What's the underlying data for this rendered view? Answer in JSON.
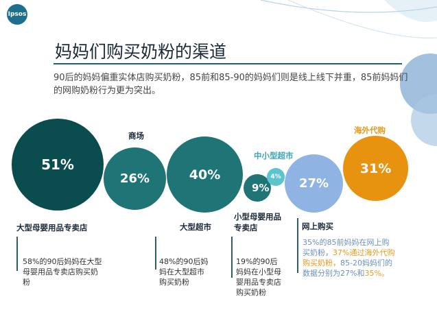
{
  "logo": "Ipsos",
  "title": "妈妈们购买奶粉的渠道",
  "subtitle": "90后的妈妈偏重实体店购买奶粉，85前和85-90的妈妈们则是线上线下并重，85前妈妈们的网购奶粉行为更为突出。",
  "colors": {
    "dark_teal": "#0b4d4e",
    "teal": "#1f7476",
    "light_teal": "#5bc4cf",
    "light_blue": "#8fb4e3",
    "orange": "#e8930f"
  },
  "chart_data": {
    "type": "bubble",
    "channels": [
      {
        "name": "大型母婴用品专卖店",
        "value": "51%",
        "pct": 51
      },
      {
        "name": "商场",
        "value": "26%",
        "pct": 26
      },
      {
        "name": "大型超市",
        "value": "40%",
        "pct": 40
      },
      {
        "name": "小型母婴用品专卖店",
        "value": "9%",
        "pct": 9
      },
      {
        "name": "中小型超市",
        "value": "4%",
        "pct": 4
      },
      {
        "name": "网上购买",
        "value": "27%",
        "pct": 27
      },
      {
        "name": "海外代购",
        "value": "31%",
        "pct": 31
      }
    ]
  },
  "labels": {
    "big_mom_store": "大型母婴用品专卖店",
    "mall": "商场",
    "hypermarket": "大型超市",
    "small_mom_store": "小型母婴用品专卖店",
    "small_supermarket": "中小型超市",
    "online": "网上购买",
    "overseas": "海外代购"
  },
  "values": {
    "big_mom_store": "51%",
    "mall": "26%",
    "hypermarket": "40%",
    "small_mom_store": "9%",
    "small_supermarket": "4%",
    "online": "27%",
    "overseas": "31%"
  },
  "notes": {
    "big_mom_store": "58%的90后妈妈在大型母婴用品专卖店购买奶粉",
    "hypermarket": "48%的90后妈妈在大型超市购买奶粉",
    "small_mom_store": "19%的90后妈妈在小型母婴用品专卖店购买奶粉",
    "online_a": "35%的85前妈妈在网上购买奶粉，",
    "online_b": "37%通过海外代购购买奶粉，",
    "online_c": "85-20妈妈们的数据分别为27%和",
    "online_d": "35%。"
  }
}
